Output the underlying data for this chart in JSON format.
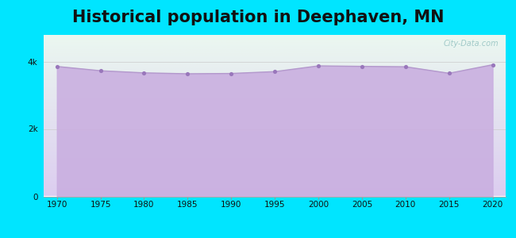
{
  "title": "Historical population in Deephaven, MN",
  "years": [
    1970,
    1975,
    1980,
    1985,
    1990,
    1995,
    2000,
    2005,
    2010,
    2015,
    2020
  ],
  "pop": [
    3853,
    3726,
    3663,
    3636,
    3645,
    3700,
    3870,
    3856,
    3844,
    3651,
    3904
  ],
  "line_color": "#b399cc",
  "fill_color": "#c9aee0",
  "dot_color": "#9977bb",
  "bg_outer": "#00e5ff",
  "title_fontsize": 15,
  "ytick_labels": [
    "0",
    "2k",
    "4k"
  ],
  "ytick_values": [
    0,
    2000,
    4000
  ],
  "ylim": [
    0,
    4800
  ],
  "xlim": [
    1968.5,
    2021.5
  ]
}
